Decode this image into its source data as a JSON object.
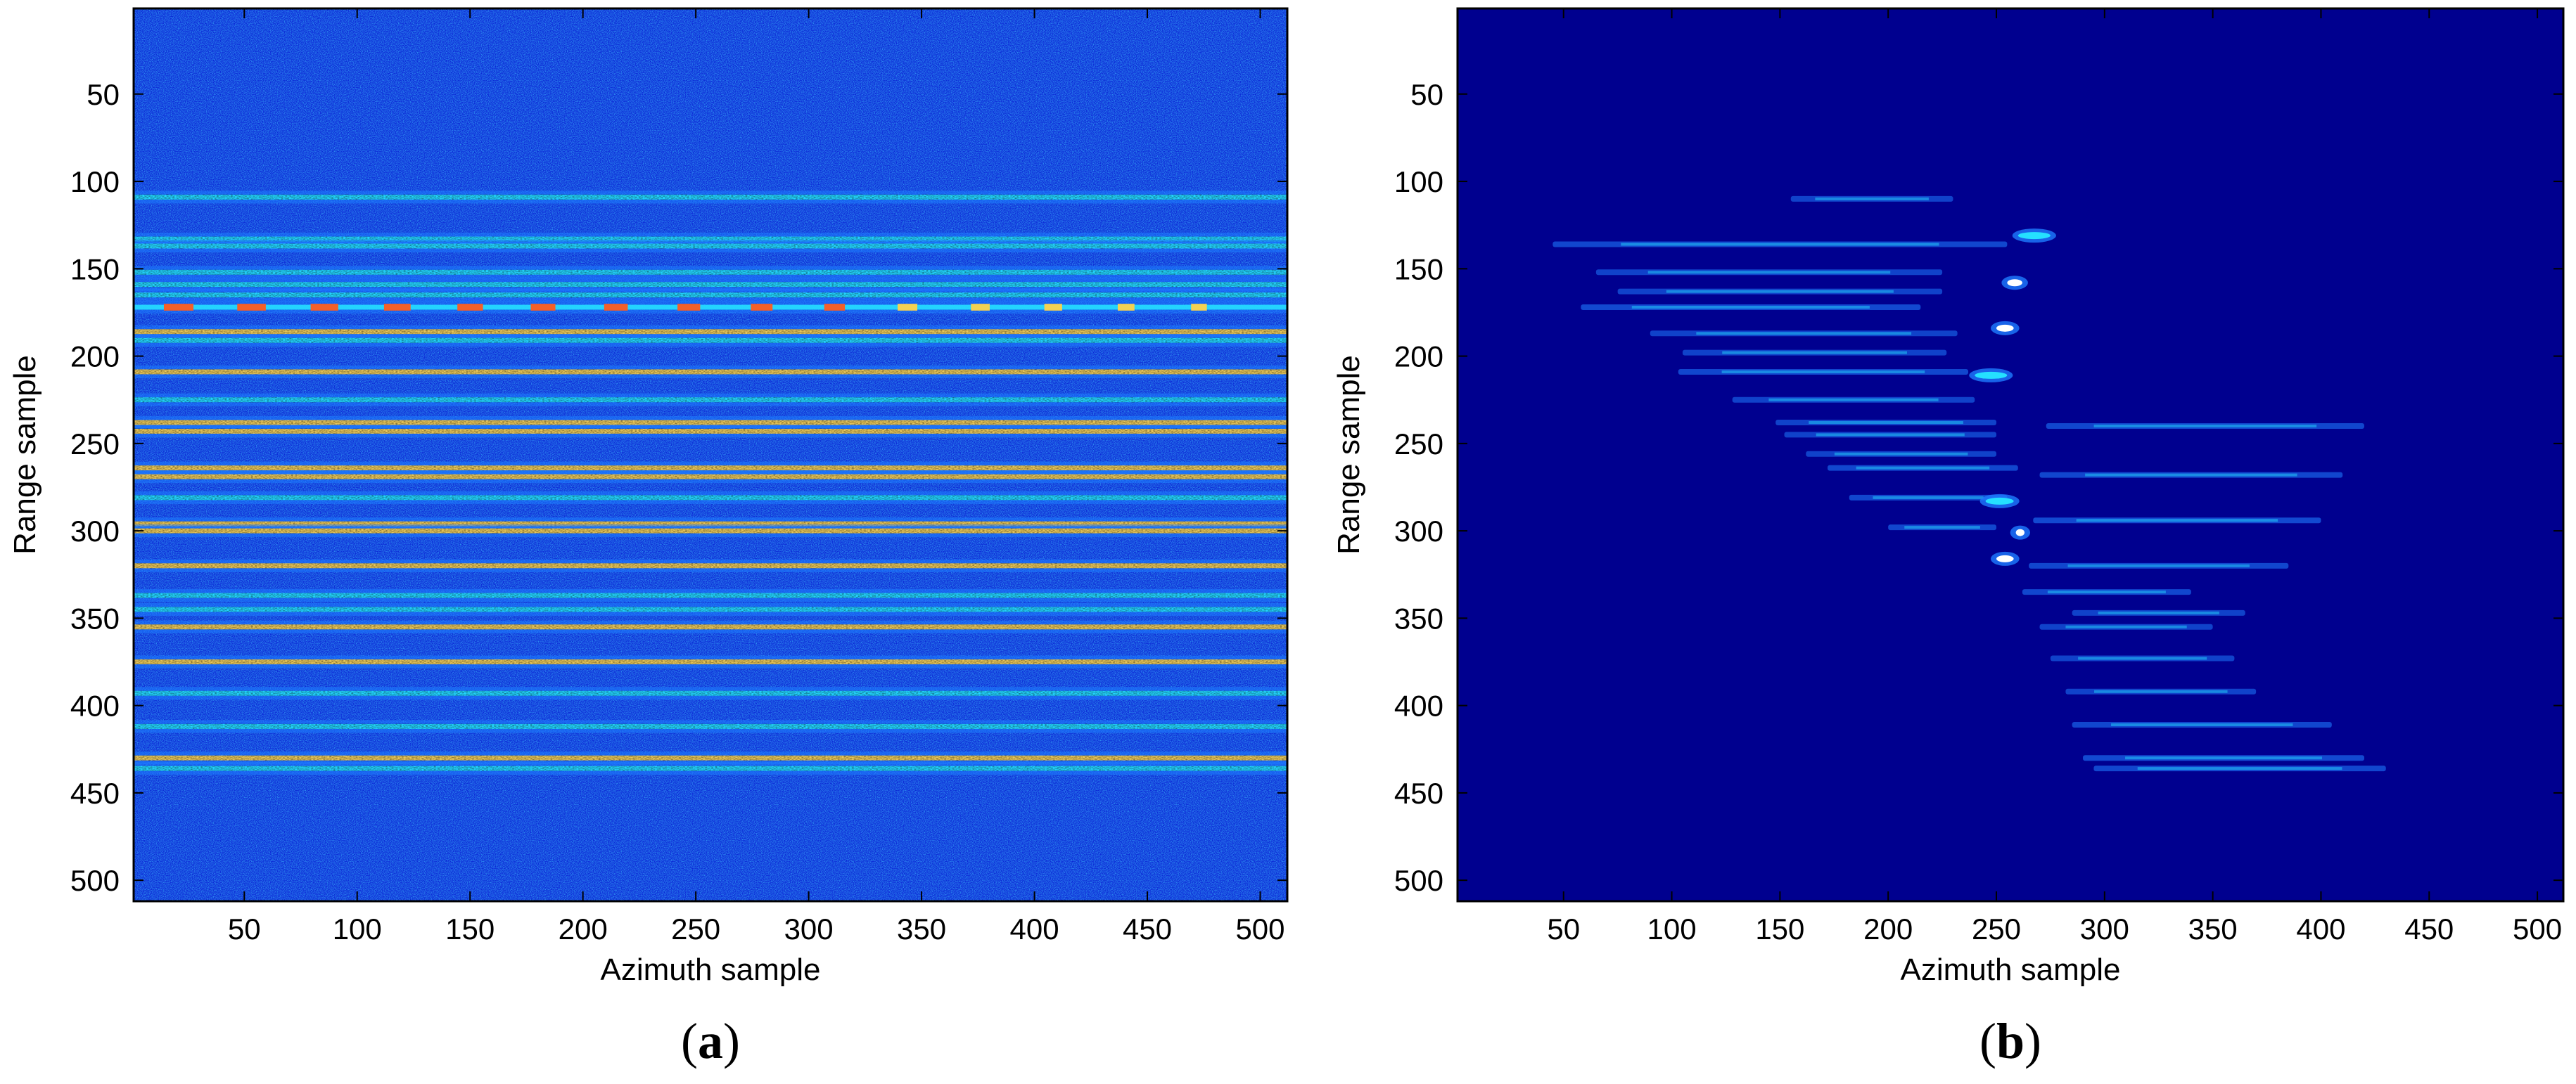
{
  "colors": {
    "background_a": "#0c2bd6",
    "background_b": "#00008f",
    "stripe_low": "#1e7cff",
    "stripe_mid": "#25e0ff",
    "stripe_high": "#ffd24a",
    "stripe_peak": "#ff5a1e",
    "axes_frame": "#000000"
  },
  "chart_data": [
    {
      "type": "heatmap",
      "panel": "(a)",
      "caption_letter": "a",
      "xlabel": "Azimuth sample",
      "ylabel": "Range sample",
      "xlim": [
        1,
        512
      ],
      "ylim": [
        512,
        1
      ],
      "y_reversed": true,
      "xticks": [
        50,
        100,
        150,
        200,
        250,
        300,
        350,
        400,
        450,
        500
      ],
      "yticks": [
        50,
        100,
        150,
        200,
        250,
        300,
        350,
        400,
        450,
        500
      ],
      "colormap": "jet",
      "background_noise": "speckled blue noise across the full frame",
      "stripes": [
        {
          "range": 109,
          "intensity": 0.45,
          "x_start": 1,
          "x_end": 512
        },
        {
          "range": 133,
          "intensity": 0.55,
          "x_start": 1,
          "x_end": 512
        },
        {
          "range": 137,
          "intensity": 0.45,
          "x_start": 1,
          "x_end": 512
        },
        {
          "range": 152,
          "intensity": 0.5,
          "x_start": 1,
          "x_end": 512
        },
        {
          "range": 159,
          "intensity": 0.55,
          "x_start": 1,
          "x_end": 512
        },
        {
          "range": 165,
          "intensity": 0.55,
          "x_start": 1,
          "x_end": 512
        },
        {
          "range": 172,
          "intensity": 0.95,
          "x_start": 1,
          "x_end": 512,
          "dashed": true
        },
        {
          "range": 186,
          "intensity": 0.6,
          "x_start": 1,
          "x_end": 512
        },
        {
          "range": 191,
          "intensity": 0.5,
          "x_start": 1,
          "x_end": 512
        },
        {
          "range": 209,
          "intensity": 0.65,
          "x_start": 1,
          "x_end": 512
        },
        {
          "range": 225,
          "intensity": 0.55,
          "x_start": 1,
          "x_end": 512
        },
        {
          "range": 238,
          "intensity": 0.6,
          "x_start": 1,
          "x_end": 512
        },
        {
          "range": 243,
          "intensity": 0.65,
          "x_start": 1,
          "x_end": 512
        },
        {
          "range": 264,
          "intensity": 0.75,
          "x_start": 1,
          "x_end": 512
        },
        {
          "range": 269,
          "intensity": 0.65,
          "x_start": 1,
          "x_end": 512
        },
        {
          "range": 281,
          "intensity": 0.55,
          "x_start": 1,
          "x_end": 512
        },
        {
          "range": 296,
          "intensity": 0.75,
          "x_start": 1,
          "x_end": 512
        },
        {
          "range": 300,
          "intensity": 0.6,
          "x_start": 1,
          "x_end": 512
        },
        {
          "range": 320,
          "intensity": 0.8,
          "x_start": 1,
          "x_end": 512
        },
        {
          "range": 337,
          "intensity": 0.55,
          "x_start": 1,
          "x_end": 512
        },
        {
          "range": 345,
          "intensity": 0.5,
          "x_start": 1,
          "x_end": 512
        },
        {
          "range": 355,
          "intensity": 0.6,
          "x_start": 1,
          "x_end": 512
        },
        {
          "range": 375,
          "intensity": 0.6,
          "x_start": 1,
          "x_end": 512
        },
        {
          "range": 393,
          "intensity": 0.55,
          "x_start": 1,
          "x_end": 512
        },
        {
          "range": 412,
          "intensity": 0.55,
          "x_start": 1,
          "x_end": 512
        },
        {
          "range": 430,
          "intensity": 0.65,
          "x_start": 1,
          "x_end": 512
        },
        {
          "range": 436,
          "intensity": 0.55,
          "x_start": 1,
          "x_end": 512
        }
      ]
    },
    {
      "type": "heatmap",
      "panel": "(b)",
      "caption_letter": "b",
      "xlabel": "Azimuth sample",
      "ylabel": "Range sample",
      "xlim": [
        1,
        512
      ],
      "ylim": [
        512,
        1
      ],
      "y_reversed": true,
      "xticks": [
        50,
        100,
        150,
        200,
        250,
        300,
        350,
        400,
        450,
        500
      ],
      "yticks": [
        50,
        100,
        150,
        200,
        250,
        300,
        350,
        400,
        450,
        500
      ],
      "colormap": "jet",
      "background_noise": "uniform dark blue",
      "streaks": [
        {
          "range": 110,
          "x_start": 155,
          "x_end": 230,
          "intensity": 0.3
        },
        {
          "range": 131,
          "x_start": 260,
          "x_end": 275,
          "intensity": 0.7
        },
        {
          "range": 136,
          "x_start": 45,
          "x_end": 255,
          "intensity": 0.35
        },
        {
          "range": 152,
          "x_start": 65,
          "x_end": 225,
          "intensity": 0.3
        },
        {
          "range": 158,
          "x_start": 255,
          "x_end": 262,
          "intensity": 0.9
        },
        {
          "range": 163,
          "x_start": 75,
          "x_end": 225,
          "intensity": 0.3
        },
        {
          "range": 172,
          "x_start": 58,
          "x_end": 215,
          "intensity": 0.4
        },
        {
          "range": 184,
          "x_start": 250,
          "x_end": 258,
          "intensity": 1.0
        },
        {
          "range": 187,
          "x_start": 90,
          "x_end": 232,
          "intensity": 0.3
        },
        {
          "range": 198,
          "x_start": 105,
          "x_end": 227,
          "intensity": 0.3
        },
        {
          "range": 209,
          "x_start": 103,
          "x_end": 237,
          "intensity": 0.35
        },
        {
          "range": 211,
          "x_start": 240,
          "x_end": 255,
          "intensity": 0.7
        },
        {
          "range": 225,
          "x_start": 128,
          "x_end": 240,
          "intensity": 0.3
        },
        {
          "range": 238,
          "x_start": 148,
          "x_end": 250,
          "intensity": 0.3
        },
        {
          "range": 240,
          "x_start": 273,
          "x_end": 420,
          "intensity": 0.35
        },
        {
          "range": 245,
          "x_start": 152,
          "x_end": 250,
          "intensity": 0.3
        },
        {
          "range": 256,
          "x_start": 162,
          "x_end": 250,
          "intensity": 0.3
        },
        {
          "range": 264,
          "x_start": 172,
          "x_end": 260,
          "intensity": 0.35
        },
        {
          "range": 268,
          "x_start": 270,
          "x_end": 410,
          "intensity": 0.35
        },
        {
          "range": 281,
          "x_start": 182,
          "x_end": 255,
          "intensity": 0.35
        },
        {
          "range": 283,
          "x_start": 245,
          "x_end": 258,
          "intensity": 0.7
        },
        {
          "range": 294,
          "x_start": 267,
          "x_end": 400,
          "intensity": 0.4
        },
        {
          "range": 298,
          "x_start": 200,
          "x_end": 250,
          "intensity": 0.35
        },
        {
          "range": 301,
          "x_start": 259,
          "x_end": 263,
          "intensity": 1.0
        },
        {
          "range": 316,
          "x_start": 250,
          "x_end": 258,
          "intensity": 0.9
        },
        {
          "range": 320,
          "x_start": 265,
          "x_end": 385,
          "intensity": 0.35
        },
        {
          "range": 335,
          "x_start": 262,
          "x_end": 340,
          "intensity": 0.35
        },
        {
          "range": 347,
          "x_start": 285,
          "x_end": 365,
          "intensity": 0.3
        },
        {
          "range": 355,
          "x_start": 270,
          "x_end": 350,
          "intensity": 0.3
        },
        {
          "range": 373,
          "x_start": 275,
          "x_end": 360,
          "intensity": 0.3
        },
        {
          "range": 392,
          "x_start": 282,
          "x_end": 370,
          "intensity": 0.3
        },
        {
          "range": 411,
          "x_start": 285,
          "x_end": 405,
          "intensity": 0.35
        },
        {
          "range": 430,
          "x_start": 290,
          "x_end": 420,
          "intensity": 0.4
        },
        {
          "range": 436,
          "x_start": 295,
          "x_end": 430,
          "intensity": 0.35
        }
      ]
    }
  ]
}
